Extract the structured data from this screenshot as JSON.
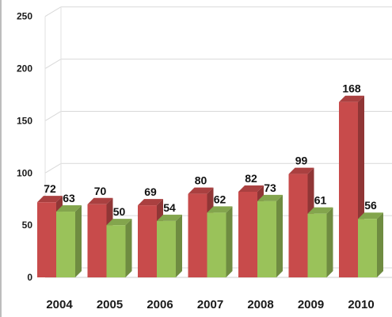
{
  "chart_data": {
    "type": "bar",
    "categories": [
      "2004",
      "2005",
      "2006",
      "2007",
      "2008",
      "2009",
      "2010"
    ],
    "series": [
      {
        "values": [
          72,
          70,
          69,
          80,
          82,
          99,
          168
        ],
        "color": "#c84b4b"
      },
      {
        "values": [
          63,
          50,
          54,
          62,
          73,
          61,
          56
        ],
        "color": "#9ac25a"
      }
    ],
    "ylim": [
      0,
      250
    ],
    "yticks": [
      0,
      50,
      100,
      150,
      200,
      250
    ],
    "grid": true,
    "legend": "none",
    "style": "3d-clustered-column"
  }
}
